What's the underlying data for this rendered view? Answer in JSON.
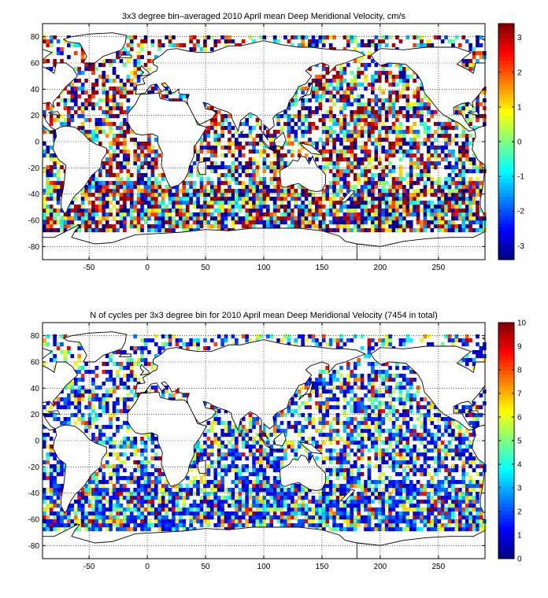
{
  "chart_data": [
    {
      "type": "heatmap",
      "title": "3x3 degree bin–averaged 2010 April mean Deep Meridional Velocity, cm/s",
      "xlabel": "",
      "ylabel": "",
      "xlim": [
        -90,
        290
      ],
      "ylim": [
        -90,
        90
      ],
      "x_ticks": [
        -50,
        0,
        50,
        100,
        150,
        200,
        250
      ],
      "y_ticks": [
        -80,
        -60,
        -40,
        -20,
        0,
        20,
        40,
        60,
        80
      ],
      "grid": true,
      "bin_size_deg": 3,
      "colorbar": {
        "range": [
          -3.4,
          3.4
        ],
        "ticks": [
          -3,
          -2,
          -1,
          0,
          1,
          2,
          3
        ],
        "colormap": "jet"
      }
    },
    {
      "type": "heatmap",
      "title": "N of cycles per 3x3 degree bin for 2010 April mean Deep Meridional Velocity (7454 in total)",
      "xlabel": "",
      "ylabel": "",
      "xlim": [
        -90,
        290
      ],
      "ylim": [
        -90,
        90
      ],
      "x_ticks": [
        -50,
        0,
        50,
        100,
        150,
        200,
        250
      ],
      "y_ticks": [
        -80,
        -60,
        -40,
        -20,
        0,
        20,
        40,
        60,
        80
      ],
      "grid": true,
      "bin_size_deg": 3,
      "total_cycles": 7454,
      "colorbar": {
        "range": [
          0,
          10
        ],
        "ticks": [
          0,
          1,
          2,
          3,
          4,
          5,
          6,
          7,
          8,
          9,
          10
        ],
        "colormap": "jet"
      }
    }
  ]
}
